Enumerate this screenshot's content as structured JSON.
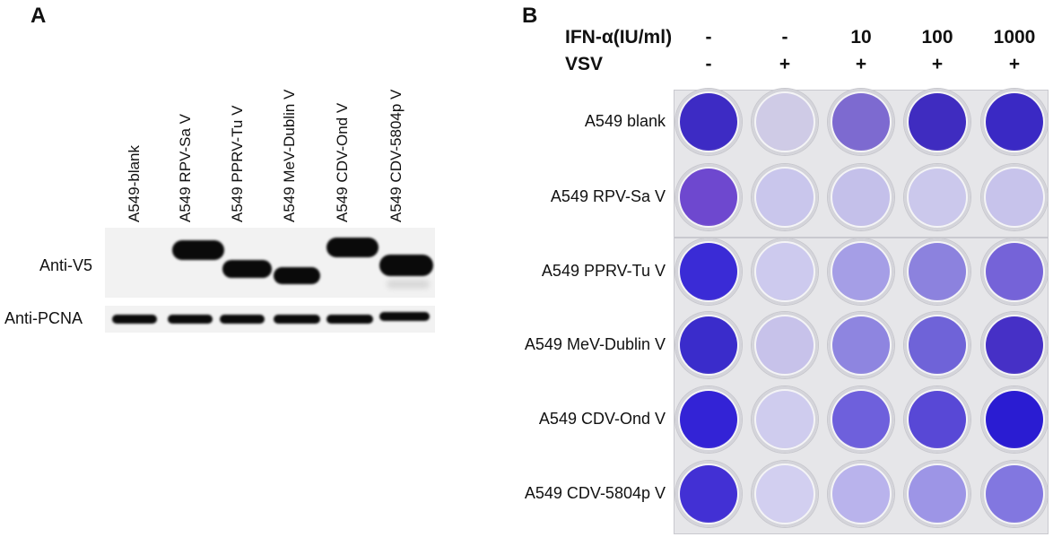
{
  "panel_a": {
    "letter": "A",
    "lanes": [
      "A549-blank",
      "A549 RPV-Sa V",
      "A549 PPRV-Tu V",
      "A549 MeV-Dublin V",
      "A549 CDV-Ond V",
      "A549 CDV-5804p V"
    ],
    "blots": [
      {
        "label": "Anti-V5"
      },
      {
        "label": "Anti-PCNA"
      }
    ]
  },
  "panel_b": {
    "letter": "B",
    "ifn_label": "IFN-α(IU/ml)",
    "vsv_label": "VSV",
    "ifn_values": [
      "-",
      "-",
      "10",
      "100",
      "1000"
    ],
    "vsv_values": [
      "-",
      "+",
      "+",
      "+",
      "+"
    ],
    "rows": [
      "A549 blank",
      "A549 RPV-Sa V",
      "A549 PPRV-Tu V",
      "A549 MeV-Dublin V",
      "A549 CDV-Ond V",
      "A549 CDV-5804p V"
    ],
    "well_colors": [
      [
        "#3d2bc4",
        "#cfcbe6",
        "#7d6ad0",
        "#3f2cc0",
        "#3a29c4"
      ],
      [
        "#6e48cf",
        "#c9c6ec",
        "#c4c0ea",
        "#cbc8ec",
        "#c7c3eb"
      ],
      [
        "#3a2bd6",
        "#cdcaee",
        "#a59ee6",
        "#8c82de",
        "#7563d8"
      ],
      [
        "#3a2ccb",
        "#c7c2ea",
        "#8e85e0",
        "#6f63d8",
        "#4630c6"
      ],
      [
        "#3323d6",
        "#cfccee",
        "#6e60dc",
        "#5848d6",
        "#2a1cd2"
      ],
      [
        "#4230d4",
        "#d2cff0",
        "#b9b3ec",
        "#9d95e6",
        "#8277e0"
      ]
    ]
  }
}
